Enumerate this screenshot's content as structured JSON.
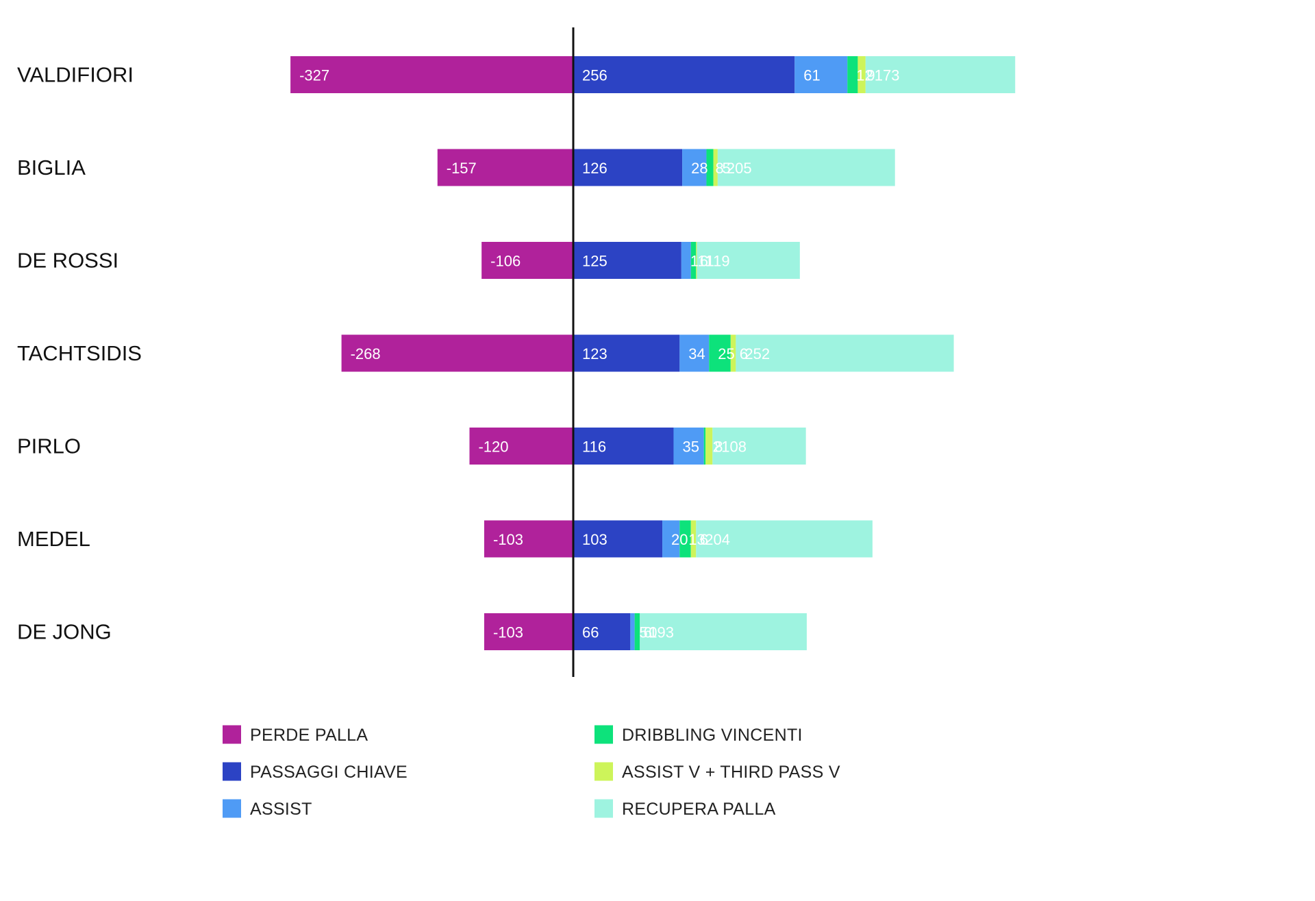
{
  "chart_data": {
    "type": "bar",
    "orientation": "horizontal",
    "stacked": true,
    "diverging": true,
    "title": "",
    "xlabel": "",
    "ylabel": "",
    "grid": false,
    "xlim": [
      -327,
      511
    ],
    "legend_position": "bottom",
    "categories": [
      "VALDIFIORI",
      "BIGLIA",
      "DE ROSSI",
      "TACHTSIDIS",
      "PIRLO",
      "MEDEL",
      "DE JONG"
    ],
    "series": [
      {
        "name": "PERDE PALLA",
        "color": "#b0229b",
        "label_color": "#ffffff",
        "values": [
          -327,
          -157,
          -106,
          -268,
          -120,
          -103,
          -103
        ]
      },
      {
        "name": "PASSAGGI CHIAVE",
        "color": "#2c43c4",
        "label_color": "#ffffff",
        "values": [
          256,
          126,
          125,
          123,
          116,
          103,
          66
        ]
      },
      {
        "name": "ASSIST",
        "color": "#4f9bf5",
        "label_color": "#ffffff",
        "values": [
          61,
          28,
          11,
          34,
          35,
          20,
          5
        ]
      },
      {
        "name": "DRIBBLING VINCENTI",
        "color": "#0de27b",
        "label_color": "#ffffff",
        "values": [
          12,
          8,
          6,
          25,
          2,
          13,
          6
        ]
      },
      {
        "name": "ASSIST V + THIRD PASS V",
        "color": "#cdf45a",
        "label_color": "#ffffff",
        "values": [
          9,
          5,
          1,
          6,
          8,
          6,
          0
        ]
      },
      {
        "name": "RECUPERA PALLA",
        "color": "#9ef3e0",
        "label_color": "#ffffff",
        "values": [
          173,
          205,
          119,
          252,
          108,
          204,
          193
        ]
      }
    ]
  }
}
